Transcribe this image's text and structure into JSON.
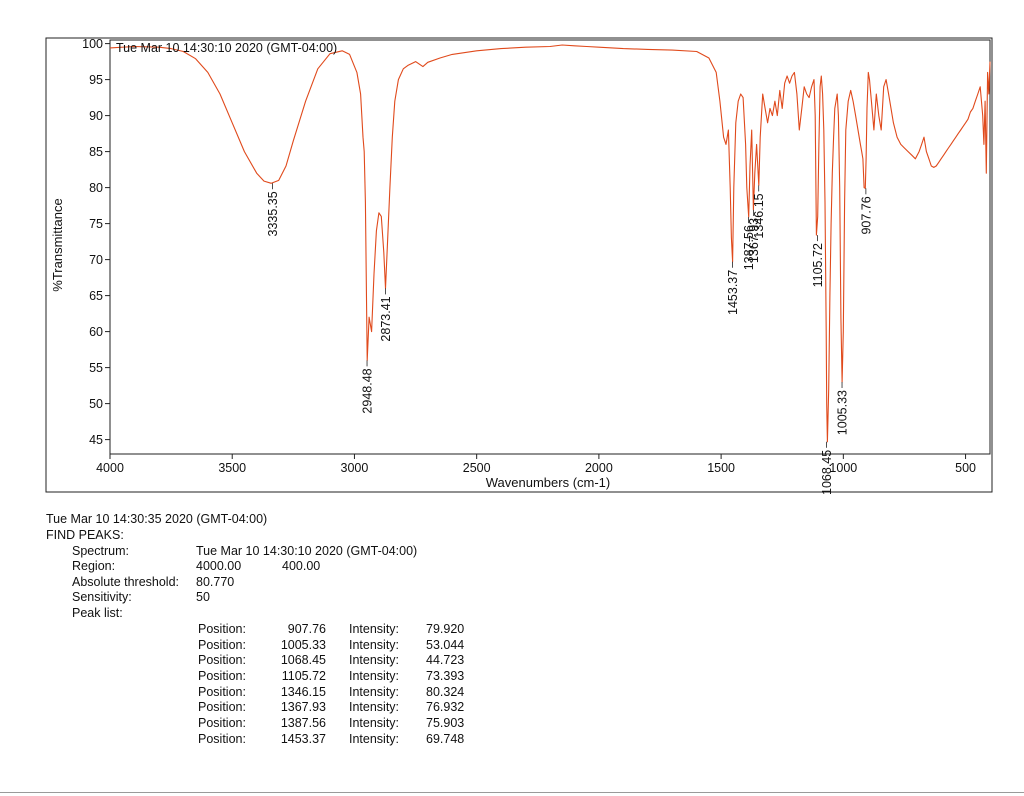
{
  "chart_data": {
    "type": "line",
    "title": "Tue Mar 10 14:30:10 2020 (GMT-04:00)",
    "xlabel": "Wavenumbers (cm-1)",
    "ylabel": "%Transmittance",
    "xlim": [
      4000,
      400
    ],
    "ylim": [
      43,
      100.5
    ],
    "x_ticks": [
      4000,
      3500,
      3000,
      2500,
      2000,
      1500,
      1000,
      500
    ],
    "y_ticks": [
      45,
      50,
      55,
      60,
      65,
      70,
      75,
      80,
      85,
      90,
      95,
      100
    ],
    "grid": false,
    "line_color": "#e04a1c",
    "series": [
      {
        "x": [
          4000,
          3900,
          3800,
          3750,
          3700,
          3650,
          3600,
          3550,
          3500,
          3450,
          3400,
          3370,
          3340,
          3310,
          3280,
          3250,
          3200,
          3150,
          3100,
          3050,
          3020,
          2990,
          2975,
          2965,
          2960,
          2955,
          2948,
          2940,
          2930,
          2920,
          2910,
          2900,
          2890,
          2880,
          2873,
          2865,
          2855,
          2845,
          2835,
          2820,
          2800,
          2780,
          2750,
          2720,
          2700,
          2650,
          2600,
          2500,
          2400,
          2300,
          2200,
          2150,
          2100,
          2050,
          2000,
          1900,
          1800,
          1700,
          1600,
          1550,
          1520,
          1505,
          1490,
          1480,
          1470,
          1463,
          1458,
          1453,
          1448,
          1440,
          1430,
          1420,
          1410,
          1400,
          1395,
          1387,
          1382,
          1375,
          1368,
          1362,
          1355,
          1346,
          1340,
          1330,
          1320,
          1310,
          1300,
          1290,
          1280,
          1270,
          1260,
          1250,
          1240,
          1230,
          1220,
          1210,
          1200,
          1190,
          1180,
          1170,
          1160,
          1150,
          1140,
          1130,
          1120,
          1115,
          1110,
          1105,
          1100,
          1095,
          1090,
          1085,
          1080,
          1075,
          1070,
          1068,
          1065,
          1060,
          1055,
          1050,
          1045,
          1040,
          1035,
          1030,
          1025,
          1020,
          1015,
          1010,
          1005,
          1000,
          995,
          990,
          980,
          970,
          960,
          950,
          940,
          930,
          925,
          920,
          915,
          910,
          907,
          903,
          898,
          893,
          885,
          875,
          865,
          855,
          845,
          835,
          825,
          815,
          805,
          795,
          780,
          765,
          750,
          735,
          720,
          705,
          690,
          680,
          670,
          660,
          650,
          640,
          630,
          620,
          610,
          600,
          590,
          580,
          570,
          560,
          550,
          540,
          530,
          520,
          510,
          500,
          490,
          480,
          470,
          460,
          450,
          440,
          430,
          425,
          420,
          415,
          410,
          405,
          400
        ],
        "y": [
          99.4,
          99.6,
          99.5,
          99.3,
          98.9,
          97.9,
          96.0,
          93.0,
          89.0,
          85.0,
          82.0,
          80.9,
          80.6,
          81.0,
          83.0,
          86.5,
          92.0,
          96.5,
          98.6,
          99.0,
          98.5,
          96.0,
          93.0,
          87.0,
          85.0,
          78.0,
          56.0,
          62.0,
          60.0,
          68.0,
          74.0,
          76.5,
          76.0,
          71.0,
          66.0,
          72.0,
          80.0,
          87.0,
          92.0,
          95.0,
          96.5,
          97.0,
          97.5,
          96.8,
          97.4,
          98.0,
          98.5,
          99.0,
          99.3,
          99.5,
          99.6,
          99.8,
          99.7,
          99.6,
          99.5,
          99.3,
          99.2,
          99.1,
          98.9,
          98.0,
          96.0,
          92.0,
          87.0,
          86.0,
          88.0,
          80.0,
          73.0,
          69.7,
          80.0,
          89.0,
          92.0,
          93.0,
          92.5,
          86.0,
          80.0,
          75.9,
          83.0,
          88.0,
          76.9,
          82.0,
          86.0,
          80.3,
          87.0,
          93.0,
          91.0,
          89.0,
          91.0,
          90.0,
          92.0,
          90.0,
          93.5,
          91.0,
          94.5,
          95.5,
          94.5,
          95.5,
          96.0,
          93.0,
          88.0,
          91.0,
          94.0,
          93.0,
          92.5,
          94.0,
          95.0,
          90.0,
          73.4,
          76.0,
          86.0,
          94.0,
          95.5,
          93.0,
          88.0,
          78.0,
          60.0,
          50.0,
          44.7,
          52.0,
          65.0,
          75.0,
          82.0,
          87.0,
          91.0,
          92.0,
          93.0,
          90.0,
          80.0,
          62.0,
          53.0,
          60.0,
          78.0,
          88.0,
          92.0,
          93.5,
          92.0,
          90.0,
          88.0,
          86.0,
          85.0,
          84.0,
          80.0,
          79.9,
          84.0,
          91.0,
          96.0,
          95.0,
          92.0,
          88.0,
          93.0,
          90.0,
          88.0,
          94.0,
          95.0,
          93.0,
          91.0,
          89.0,
          87.0,
          86.0,
          85.5,
          85.0,
          84.5,
          84.0,
          85.0,
          86.0,
          87.0,
          85.0,
          84.0,
          83.0,
          82.8,
          83.0,
          83.5,
          84.0,
          84.5,
          85.0,
          85.5,
          86.0,
          86.5,
          87.0,
          87.5,
          88.0,
          88.5,
          89.0,
          89.5,
          90.5,
          91.0,
          92.0,
          93.0,
          94.0,
          90.0,
          86.0,
          92.0,
          82.0,
          96.0,
          93.0,
          97.5
        ]
      }
    ],
    "annotations": [
      {
        "label": "3335.35",
        "x": 3335.35,
        "y": 80.6
      },
      {
        "label": "2948.48",
        "x": 2948.48,
        "y": 56.0
      },
      {
        "label": "2873.41",
        "x": 2873.41,
        "y": 66.0
      },
      {
        "label": "1453.37",
        "x": 1453.37,
        "y": 69.7
      },
      {
        "label": "1387.56",
        "x": 1387.56,
        "y": 75.9
      },
      {
        "label": "1367.93",
        "x": 1367.93,
        "y": 76.9
      },
      {
        "label": "1346.15",
        "x": 1346.15,
        "y": 80.3
      },
      {
        "label": "1105.72",
        "x": 1105.72,
        "y": 73.4
      },
      {
        "label": "1068.45",
        "x": 1068.45,
        "y": 44.7
      },
      {
        "label": "1005.33",
        "x": 1005.33,
        "y": 53.0
      },
      {
        "label": "907.76",
        "x": 907.76,
        "y": 79.9
      }
    ]
  },
  "report": {
    "timestamp": "Tue Mar 10 14:30:35 2020 (GMT-04:00)",
    "heading": "FIND PEAKS:",
    "spectrum_label": "Spectrum:",
    "spectrum_value": "Tue Mar 10 14:30:10 2020 (GMT-04:00)",
    "region_label": "Region:",
    "region_start": "4000.00",
    "region_end": "400.00",
    "threshold_label": "Absolute threshold:",
    "threshold_value": "80.770",
    "sensitivity_label": "Sensitivity:",
    "sensitivity_value": "50",
    "peak_list_label": "Peak list:",
    "position_label": "Position:",
    "intensity_label": "Intensity:",
    "peaks": [
      {
        "position": "907.76",
        "intensity": "79.920"
      },
      {
        "position": "1005.33",
        "intensity": "53.044"
      },
      {
        "position": "1068.45",
        "intensity": "44.723"
      },
      {
        "position": "1105.72",
        "intensity": "73.393"
      },
      {
        "position": "1346.15",
        "intensity": "80.324"
      },
      {
        "position": "1367.93",
        "intensity": "76.932"
      },
      {
        "position": "1387.56",
        "intensity": "75.903"
      },
      {
        "position": "1453.37",
        "intensity": "69.748"
      }
    ]
  }
}
